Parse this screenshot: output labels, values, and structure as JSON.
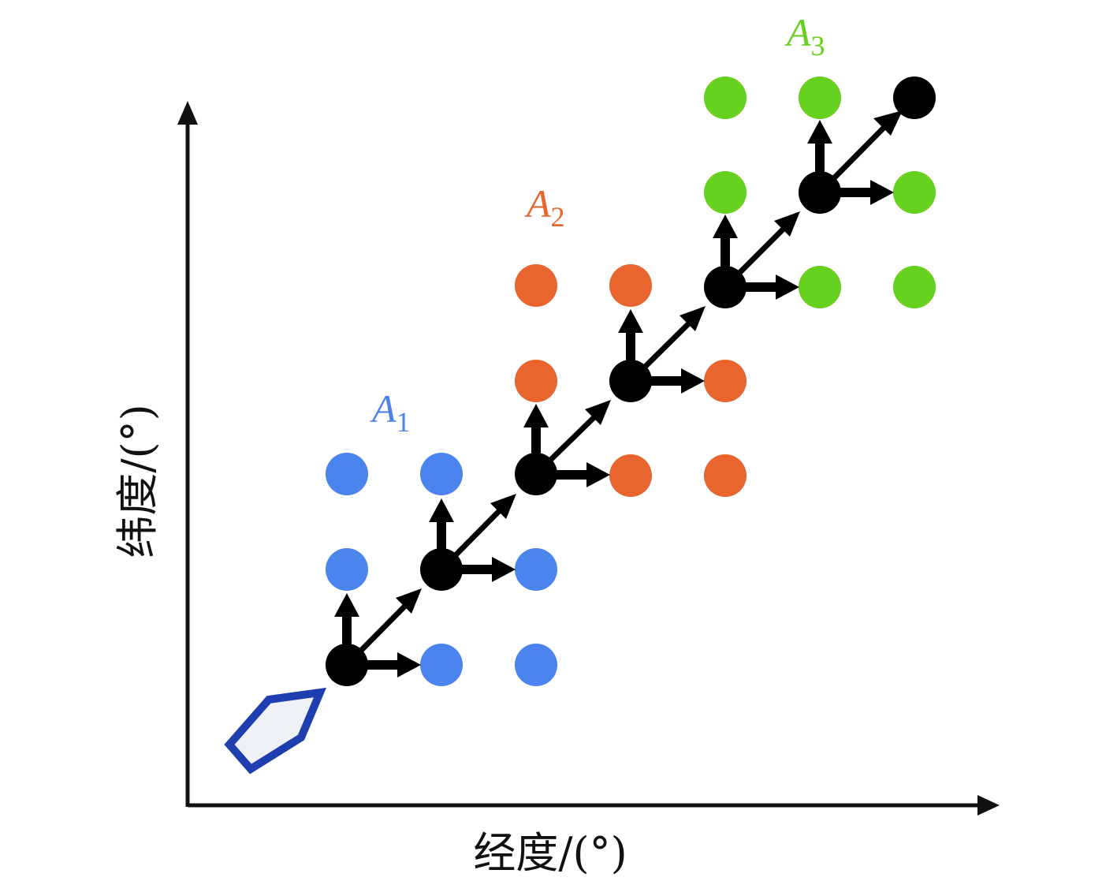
{
  "axes": {
    "x_label": "经度/(°)",
    "y_label": "纬度/(°)"
  },
  "regions": [
    {
      "id": "A1",
      "letter": "A",
      "subscript": "1",
      "color": "#4b84ee"
    },
    {
      "id": "A2",
      "letter": "A",
      "subscript": "2",
      "color": "#e8652f"
    },
    {
      "id": "A3",
      "letter": "A",
      "subscript": "3",
      "color": "#66d11e"
    }
  ],
  "colors": {
    "axis": "#111111",
    "path": "#000000",
    "ship_outline": "#1f3fb0",
    "ship_fill": "#eef2f6"
  },
  "icons": {
    "start": "ship-icon"
  }
}
